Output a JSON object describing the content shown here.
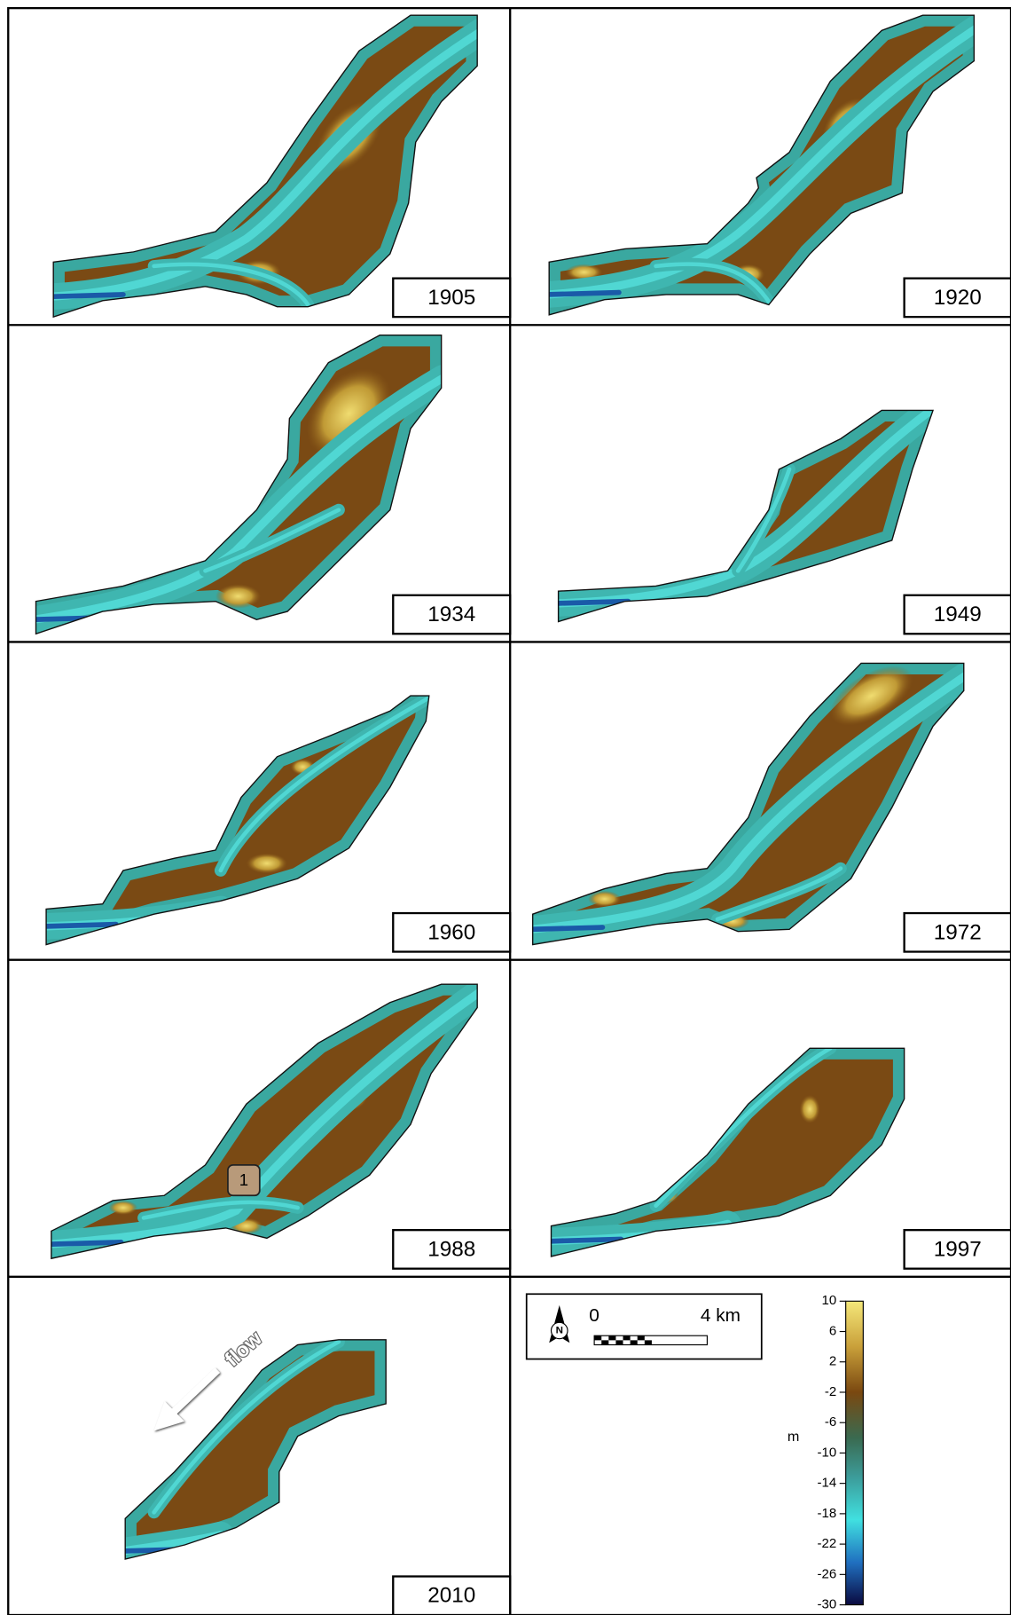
{
  "panels": [
    {
      "year": "1905"
    },
    {
      "year": "1920"
    },
    {
      "year": "1934"
    },
    {
      "year": "1949"
    },
    {
      "year": "1960"
    },
    {
      "year": "1972"
    },
    {
      "year": "1988"
    },
    {
      "year": "1997"
    },
    {
      "year": "2010"
    }
  ],
  "marker": "1",
  "arrow_label": "flow",
  "scale_bar": {
    "north": "N",
    "start": "0",
    "end": "4 km"
  },
  "colorbar": {
    "unit": "m",
    "ticks": [
      10,
      6,
      2,
      -2,
      -6,
      -10,
      -14,
      -18,
      -22,
      -26,
      -30
    ]
  }
}
